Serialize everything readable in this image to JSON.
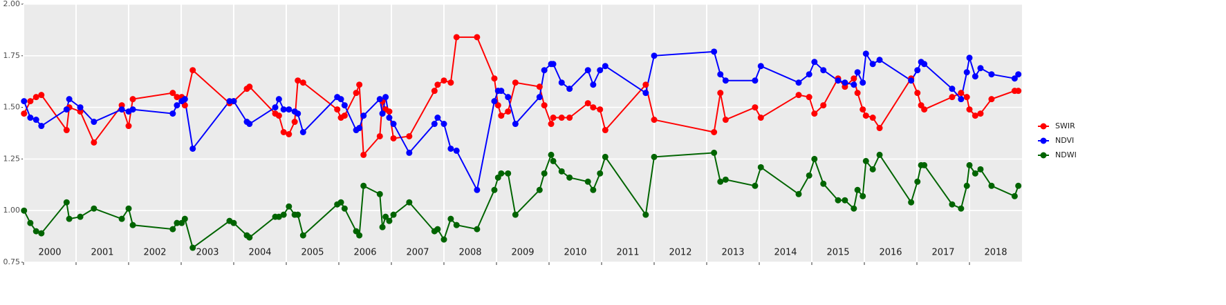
{
  "chart_data": {
    "type": "line",
    "x": [
      2000.01,
      2000.13,
      2000.24,
      2000.34,
      2000.82,
      2000.87,
      2001.08,
      2001.34,
      2001.87,
      2002.0,
      2002.08,
      2002.84,
      2002.92,
      2003.01,
      2003.07,
      2003.22,
      2003.92,
      2004.0,
      2004.25,
      2004.3,
      2004.79,
      2004.86,
      2004.95,
      2005.05,
      2005.16,
      2005.22,
      2005.32,
      2005.97,
      2006.04,
      2006.11,
      2006.33,
      2006.39,
      2006.47,
      2006.78,
      2006.83,
      2006.89,
      2006.96,
      2007.04,
      2007.34,
      2007.82,
      2007.88,
      2008.0,
      2008.13,
      2008.24,
      2008.63,
      2008.96,
      2009.03,
      2009.09,
      2009.22,
      2009.36,
      2009.82,
      2009.91,
      2010.04,
      2010.08,
      2010.24,
      2010.39,
      2010.74,
      2010.84,
      2010.97,
      2011.07,
      2011.84,
      2012.0,
      2013.14,
      2013.26,
      2013.36,
      2013.92,
      2014.03,
      2014.75,
      2014.95,
      2015.05,
      2015.22,
      2015.5,
      2015.63,
      2015.8,
      2015.87,
      2015.97,
      2016.03,
      2016.16,
      2016.29,
      2016.89,
      2017.01,
      2017.08,
      2017.14,
      2017.67,
      2017.84,
      2017.95,
      2018.0,
      2018.11,
      2018.21,
      2018.42,
      2018.86,
      2018.93
    ],
    "series": [
      {
        "name": "SWIR",
        "color": "#ff0000",
        "values": [
          1.47,
          1.53,
          1.55,
          1.56,
          1.39,
          1.5,
          1.48,
          1.33,
          1.51,
          1.41,
          1.54,
          1.57,
          1.55,
          1.55,
          1.51,
          1.68,
          1.52,
          1.53,
          1.59,
          1.6,
          1.47,
          1.46,
          1.38,
          1.37,
          1.43,
          1.63,
          1.62,
          1.49,
          1.45,
          1.46,
          1.57,
          1.61,
          1.27,
          1.36,
          1.53,
          1.49,
          1.48,
          1.35,
          1.36,
          1.58,
          1.61,
          1.63,
          1.62,
          1.84,
          1.84,
          1.64,
          1.51,
          1.46,
          1.48,
          1.62,
          1.6,
          1.51,
          1.42,
          1.45,
          1.45,
          1.45,
          1.52,
          1.5,
          1.49,
          1.39,
          1.61,
          1.44,
          1.38,
          1.57,
          1.44,
          1.5,
          1.45,
          1.56,
          1.55,
          1.47,
          1.51,
          1.64,
          1.6,
          1.64,
          1.57,
          1.49,
          1.46,
          1.45,
          1.4,
          1.64,
          1.57,
          1.51,
          1.49,
          1.55,
          1.57,
          1.55,
          1.49,
          1.46,
          1.47,
          1.54,
          1.58,
          1.58
        ]
      },
      {
        "name": "NDVI",
        "color": "#0000ff",
        "values": [
          1.53,
          1.45,
          1.44,
          1.41,
          1.49,
          1.54,
          1.5,
          1.43,
          1.49,
          1.48,
          1.49,
          1.47,
          1.51,
          1.53,
          1.54,
          1.3,
          1.53,
          1.53,
          1.43,
          1.42,
          1.5,
          1.54,
          1.49,
          1.49,
          1.48,
          1.47,
          1.38,
          1.55,
          1.54,
          1.51,
          1.39,
          1.4,
          1.46,
          1.54,
          1.47,
          1.55,
          1.45,
          1.42,
          1.28,
          1.42,
          1.45,
          1.42,
          1.3,
          1.29,
          1.1,
          1.53,
          1.58,
          1.58,
          1.55,
          1.42,
          1.55,
          1.68,
          1.71,
          1.71,
          1.62,
          1.59,
          1.68,
          1.61,
          1.68,
          1.7,
          1.57,
          1.75,
          1.77,
          1.66,
          1.63,
          1.63,
          1.7,
          1.62,
          1.66,
          1.72,
          1.68,
          1.63,
          1.62,
          1.61,
          1.67,
          1.62,
          1.76,
          1.71,
          1.73,
          1.63,
          1.68,
          1.72,
          1.71,
          1.59,
          1.54,
          1.67,
          1.74,
          1.65,
          1.69,
          1.66,
          1.64,
          1.66
        ]
      },
      {
        "name": "NDWI",
        "color": "#006400",
        "values": [
          1.0,
          0.94,
          0.9,
          0.89,
          1.04,
          0.96,
          0.97,
          1.01,
          0.96,
          1.01,
          0.93,
          0.91,
          0.94,
          0.94,
          0.96,
          0.82,
          0.95,
          0.94,
          0.88,
          0.87,
          0.97,
          0.97,
          0.98,
          1.02,
          0.98,
          0.98,
          0.88,
          1.03,
          1.04,
          1.01,
          0.9,
          0.88,
          1.12,
          1.08,
          0.92,
          0.97,
          0.95,
          0.98,
          1.04,
          0.9,
          0.91,
          0.86,
          0.96,
          0.93,
          0.91,
          1.1,
          1.16,
          1.18,
          1.18,
          0.98,
          1.1,
          1.18,
          1.27,
          1.24,
          1.19,
          1.16,
          1.14,
          1.1,
          1.18,
          1.26,
          0.98,
          1.26,
          1.28,
          1.14,
          1.15,
          1.12,
          1.21,
          1.08,
          1.17,
          1.25,
          1.13,
          1.05,
          1.05,
          1.01,
          1.1,
          1.07,
          1.24,
          1.2,
          1.27,
          1.04,
          1.14,
          1.22,
          1.22,
          1.03,
          1.01,
          1.12,
          1.22,
          1.18,
          1.2,
          1.12,
          1.07,
          1.12
        ]
      }
    ],
    "xlim": [
      2000,
      2019
    ],
    "xticks": [
      {
        "value": 2000.5,
        "label": "2000"
      },
      {
        "value": 2001.5,
        "label": "2001"
      },
      {
        "value": 2002.5,
        "label": "2002"
      },
      {
        "value": 2003.5,
        "label": "2003"
      },
      {
        "value": 2004.5,
        "label": "2004"
      },
      {
        "value": 2005.5,
        "label": "2005"
      },
      {
        "value": 2006.5,
        "label": "2006"
      },
      {
        "value": 2007.5,
        "label": "2007"
      },
      {
        "value": 2008.5,
        "label": "2008"
      },
      {
        "value": 2009.5,
        "label": "2009"
      },
      {
        "value": 2010.5,
        "label": "2010"
      },
      {
        "value": 2011.5,
        "label": "2011"
      },
      {
        "value": 2012.5,
        "label": "2012"
      },
      {
        "value": 2013.5,
        "label": "2013"
      },
      {
        "value": 2014.5,
        "label": "2014"
      },
      {
        "value": 2015.5,
        "label": "2015"
      },
      {
        "value": 2016.5,
        "label": "2016"
      },
      {
        "value": 2017.5,
        "label": "2017"
      },
      {
        "value": 2018.5,
        "label": "2018"
      }
    ],
    "ylim": [
      0.75,
      2
    ],
    "yticks": [
      0.75,
      {
        "value": 1,
        "label": "1.00"
      },
      1.25,
      {
        "value": 1.5,
        "label": "1.50"
      },
      1.75,
      {
        "value": 2,
        "label": "2.00"
      }
    ],
    "grid": true,
    "legend": "right"
  }
}
